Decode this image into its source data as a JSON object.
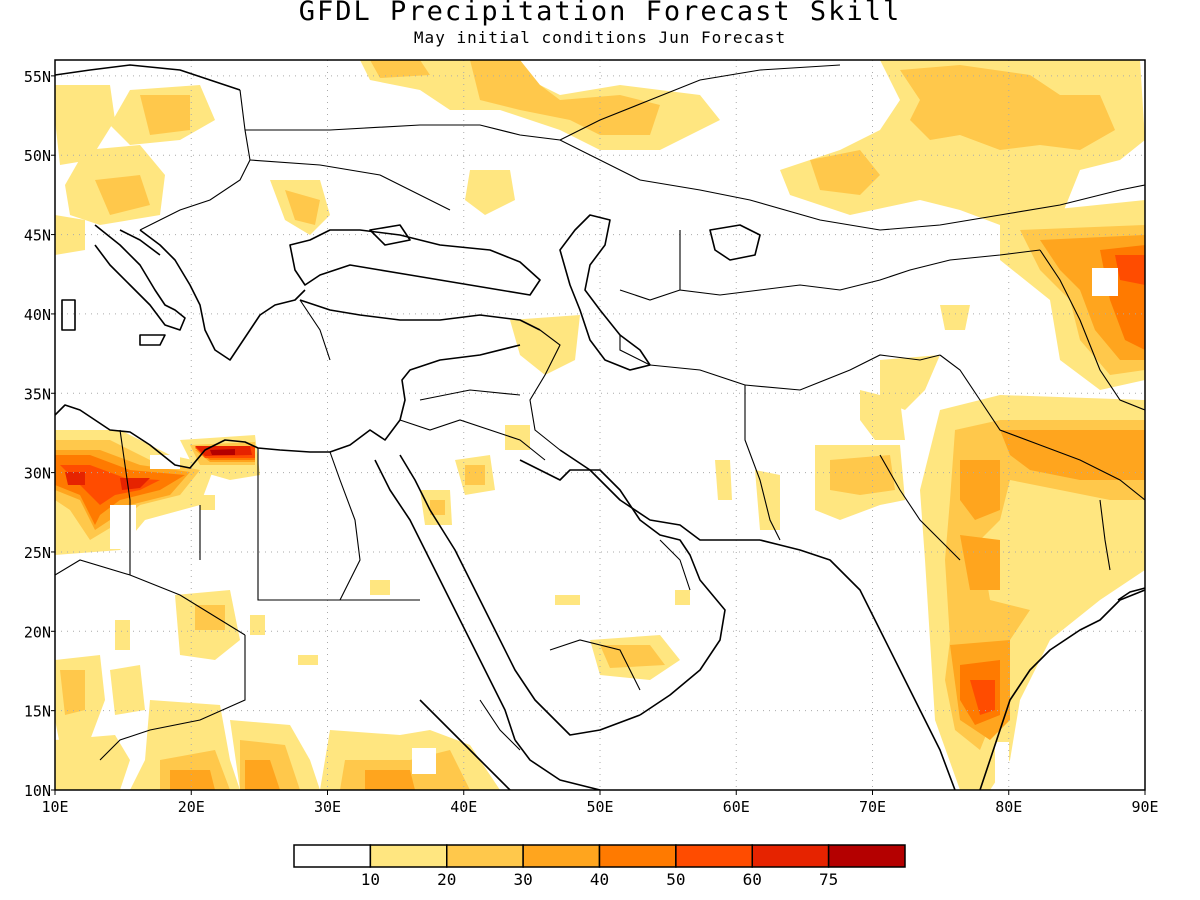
{
  "title": "GFDL Precipitation Forecast Skill",
  "subtitle": "May initial conditions  Jun Forecast",
  "axes": {
    "lon_labels": [
      "10E",
      "20E",
      "30E",
      "40E",
      "50E",
      "60E",
      "70E",
      "80E",
      "90E"
    ],
    "lat_labels": [
      "10N",
      "15N",
      "20N",
      "25N",
      "30N",
      "35N",
      "40N",
      "45N",
      "50N",
      "55N"
    ],
    "lon_range": [
      10,
      90
    ],
    "lat_range": [
      10,
      56
    ],
    "grid": "dotted"
  },
  "colorbar": {
    "labels": [
      "10",
      "20",
      "30",
      "40",
      "50",
      "60",
      "75"
    ],
    "colors": [
      "#ffffff",
      "#ffe680",
      "#ffc84b",
      "#ffa51e",
      "#ff7a00",
      "#ff4c00",
      "#e62300",
      "#b40000"
    ]
  },
  "colors": {
    "coast": "#000000",
    "grid": "#aaaaaa"
  }
}
